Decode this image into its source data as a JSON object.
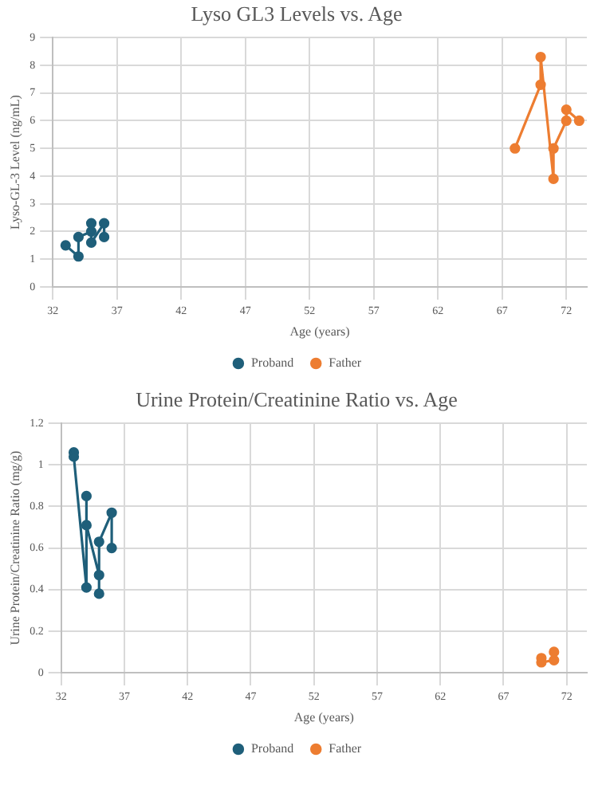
{
  "chart_data": [
    {
      "type": "line",
      "title": "Lyso GL3 Levels vs. Age",
      "xlabel": "Age (years)",
      "ylabel": "Lyso-GL-3 Level (ng/mL)",
      "xlim": [
        32,
        73.6
      ],
      "xticks": [
        32,
        37,
        42,
        47,
        52,
        57,
        62,
        67,
        72
      ],
      "ylim": [
        0,
        9
      ],
      "yticks": [
        0,
        1,
        2,
        3,
        4,
        5,
        6,
        7,
        8,
        9
      ],
      "grid": true,
      "legend": "bottom",
      "marker": "circle",
      "line_style": "solid",
      "series": [
        {
          "name": "Proband",
          "color": "#1f5f7a",
          "x": [
            33,
            34,
            34,
            35,
            35,
            35,
            36,
            36
          ],
          "values": [
            1.5,
            1.1,
            1.8,
            2.0,
            2.3,
            1.6,
            2.3,
            1.8
          ]
        },
        {
          "name": "Father",
          "color": "#ed7d31",
          "x": [
            68,
            70,
            70,
            71,
            71,
            72,
            72,
            73
          ],
          "values": [
            5.0,
            7.3,
            8.3,
            3.9,
            5.0,
            6.0,
            6.4,
            6.0
          ]
        }
      ]
    },
    {
      "type": "line",
      "title": "Urine Protein/Creatinine Ratio vs. Age",
      "xlabel": "Age (years)",
      "ylabel": "Urine Protein/Creatinine Ratio (mg/g)",
      "xlim": [
        32,
        73.6
      ],
      "xticks": [
        32,
        37,
        42,
        47,
        52,
        57,
        62,
        67,
        72
      ],
      "ylim": [
        0,
        1.2
      ],
      "yticks": [
        0,
        0.2,
        0.4,
        0.6,
        0.8,
        1,
        1.2
      ],
      "grid": true,
      "legend": "bottom",
      "marker": "circle",
      "line_style": "solid",
      "series": [
        {
          "name": "Proband",
          "color": "#1f5f7a",
          "x": [
            33,
            33,
            34,
            34,
            34,
            35,
            35,
            35,
            36,
            36
          ],
          "values": [
            1.06,
            1.04,
            0.41,
            0.85,
            0.71,
            0.47,
            0.38,
            0.63,
            0.77,
            0.6
          ]
        },
        {
          "name": "Father",
          "color": "#ed7d31",
          "x": [
            70,
            70,
            71,
            71
          ],
          "values": [
            0.07,
            0.05,
            0.06,
            0.1
          ]
        }
      ]
    }
  ]
}
